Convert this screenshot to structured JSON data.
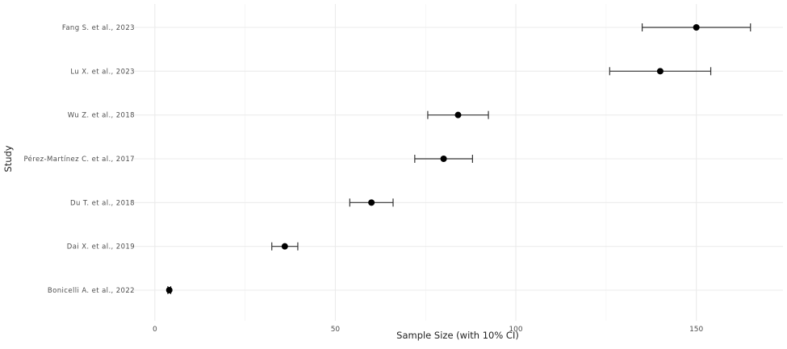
{
  "chart_data": {
    "type": "scatter",
    "subtype": "forest-plot",
    "title": "",
    "xlabel": "Sample Size (with 10% CI)",
    "ylabel": "Study",
    "xlim": [
      -6,
      174
    ],
    "xticks": [
      0,
      50,
      100,
      150
    ],
    "xtick_labels": [
      "0",
      "50",
      "100",
      "150"
    ],
    "grid": true,
    "studies": [
      {
        "label": "Fang S. et al., 2023",
        "value": 150,
        "lower": 135,
        "upper": 165
      },
      {
        "label": "Lu X. et al., 2023",
        "value": 140,
        "lower": 126,
        "upper": 154
      },
      {
        "label": "Wu Z. et al., 2018",
        "value": 84,
        "lower": 75.6,
        "upper": 92.4
      },
      {
        "label": "Pérez-Martínez C. et al., 2017",
        "value": 80,
        "lower": 72,
        "upper": 88
      },
      {
        "label": "Du T. et al., 2018",
        "value": 60,
        "lower": 54,
        "upper": 66
      },
      {
        "label": "Dai X. et al., 2019",
        "value": 36,
        "lower": 32.4,
        "upper": 39.6
      },
      {
        "label": "Bonicelli A. et al., 2022",
        "value": 4,
        "lower": 3.6,
        "upper": 4.4
      }
    ],
    "colors": {
      "point": "#000000",
      "errorbar": "#333333",
      "grid": "#ebebeb",
      "text": "#4d4d4d"
    }
  }
}
